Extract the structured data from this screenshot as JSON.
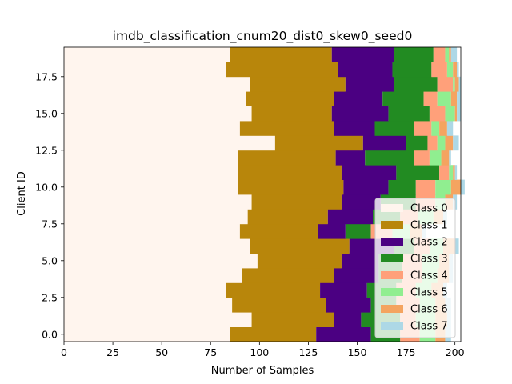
{
  "chart_data": {
    "type": "bar",
    "orientation": "horizontal",
    "stacked": true,
    "title": "imdb_classification_cnum20_dist0_skew0_seed0",
    "xlabel": "Number of Samples",
    "ylabel": "Client ID",
    "xlim": [
      0,
      203
    ],
    "ylim": [
      -0.5,
      19.5
    ],
    "xticks": [
      0,
      25,
      50,
      75,
      100,
      125,
      150,
      175,
      200
    ],
    "yticks": [
      0.0,
      2.5,
      5.0,
      7.5,
      10.0,
      12.5,
      15.0,
      17.5
    ],
    "ytick_labels": [
      "0.0",
      "2.5",
      "5.0",
      "7.5",
      "10.0",
      "12.5",
      "15.0",
      "17.5"
    ],
    "grid": false,
    "legend_position": "lower right",
    "categories": [
      0,
      1,
      2,
      3,
      4,
      5,
      6,
      7,
      8,
      9,
      10,
      11,
      12,
      13,
      14,
      15,
      16,
      17,
      18,
      19
    ],
    "series": [
      {
        "name": "Class 0",
        "color": "#fff5ee",
        "values": [
          85,
          96,
          86,
          83,
          91,
          99,
          95,
          90,
          94,
          96,
          89,
          89,
          89,
          108,
          90,
          96,
          93,
          95,
          83,
          85
        ]
      },
      {
        "name": "Class 1",
        "color": "#b8860b",
        "values": [
          44,
          42,
          48,
          48,
          47,
          43,
          51,
          40,
          41,
          46,
          54,
          53,
          50,
          45,
          48,
          41,
          45,
          49,
          57,
          52
        ]
      },
      {
        "name": "Class 2",
        "color": "#4b0082",
        "values": [
          28,
          14,
          23,
          24,
          23,
          19,
          23,
          14,
          23,
          20,
          23,
          28,
          15,
          22,
          21,
          29,
          25,
          25,
          28,
          32
        ]
      },
      {
        "name": "Class 3",
        "color": "#228b22",
        "values": [
          15,
          20,
          13,
          15,
          12,
          12,
          10,
          13,
          14,
          18,
          14,
          22,
          25,
          11,
          20,
          21,
          21,
          22,
          20,
          20
        ]
      },
      {
        "name": "Class 4",
        "color": "#ffa07a",
        "values": [
          10,
          8,
          12,
          10,
          10,
          10,
          8,
          11,
          9,
          10,
          10,
          5,
          8,
          5,
          9,
          8,
          7,
          8,
          8,
          6
        ]
      },
      {
        "name": "Class 5",
        "color": "#90ee90",
        "values": [
          8,
          10,
          8,
          8,
          8,
          9,
          7,
          9,
          8,
          5,
          8,
          2,
          6,
          4,
          4,
          5,
          7,
          1,
          3,
          2
        ]
      },
      {
        "name": "Class 6",
        "color": "#f4a460",
        "values": [
          5,
          6,
          5,
          6,
          6,
          5,
          6,
          6,
          5,
          4,
          5,
          1,
          4,
          4,
          4,
          1,
          3,
          2,
          2,
          1
        ]
      },
      {
        "name": "Class 7",
        "color": "#add8e6",
        "values": [
          3,
          2,
          3,
          2,
          2,
          2,
          2,
          2,
          2,
          2,
          2,
          1,
          1,
          3,
          3,
          2,
          2,
          1,
          1,
          3
        ]
      }
    ]
  }
}
